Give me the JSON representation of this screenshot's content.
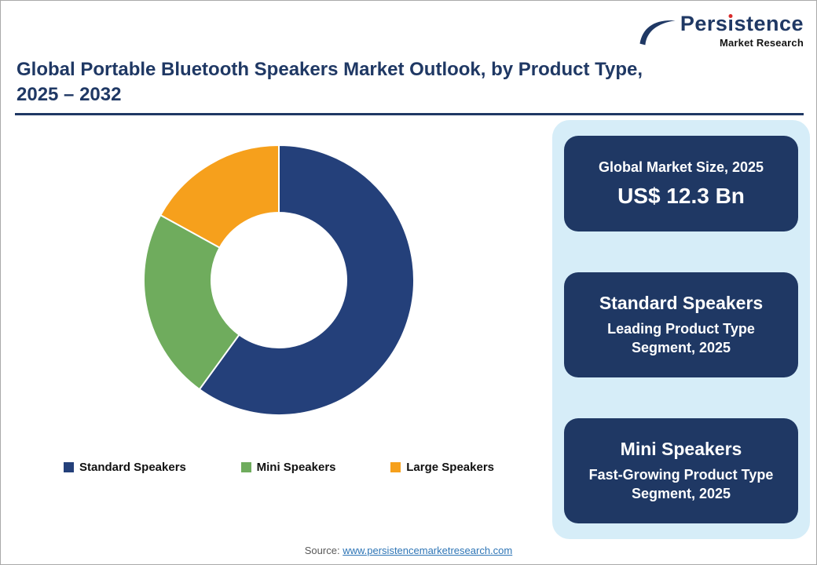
{
  "palette": {
    "navy": "#1F3864",
    "chart_navy": "#24407A",
    "green": "#6FAC5D",
    "orange": "#F6A01C",
    "panel_blue": "#D6EDF8",
    "link_blue": "#2E75B6",
    "logo_dot_red": "#D92B2B"
  },
  "brand": {
    "name": "Persistence",
    "name_pre": "Pers",
    "name_i": "ı",
    "name_post": "stence",
    "tagline": "Market Research"
  },
  "header": {
    "title_line1": "Global Portable Bluetooth Speakers Market Outlook, by Product Type,",
    "title_line2": "2025 – 2032"
  },
  "chart_data": {
    "type": "pie",
    "donut": true,
    "inner_radius_ratio": 0.5,
    "start_angle_deg": -90,
    "direction": "clockwise",
    "title": "Global Portable Bluetooth Speakers Market Outlook, by Product Type, 2025 – 2032",
    "categories": [
      "Standard Speakers",
      "Mini Speakers",
      "Large Speakers"
    ],
    "values": [
      60,
      23,
      17
    ],
    "colors": [
      "#24407A",
      "#6FAC5D",
      "#F6A01C"
    ],
    "legend_position": "bottom"
  },
  "sidebar": {
    "cards": [
      {
        "title": "Global Market Size, 2025",
        "value": "US$ 12.3 Bn"
      },
      {
        "title": "Standard Speakers",
        "subtitle": "Leading Product Type Segment, 2025"
      },
      {
        "title": "Mini Speakers",
        "subtitle": "Fast-Growing Product Type Segment, 2025"
      }
    ]
  },
  "footer": {
    "source_label": "Source:",
    "source_link": "www.persistencemarketresearch.com"
  }
}
